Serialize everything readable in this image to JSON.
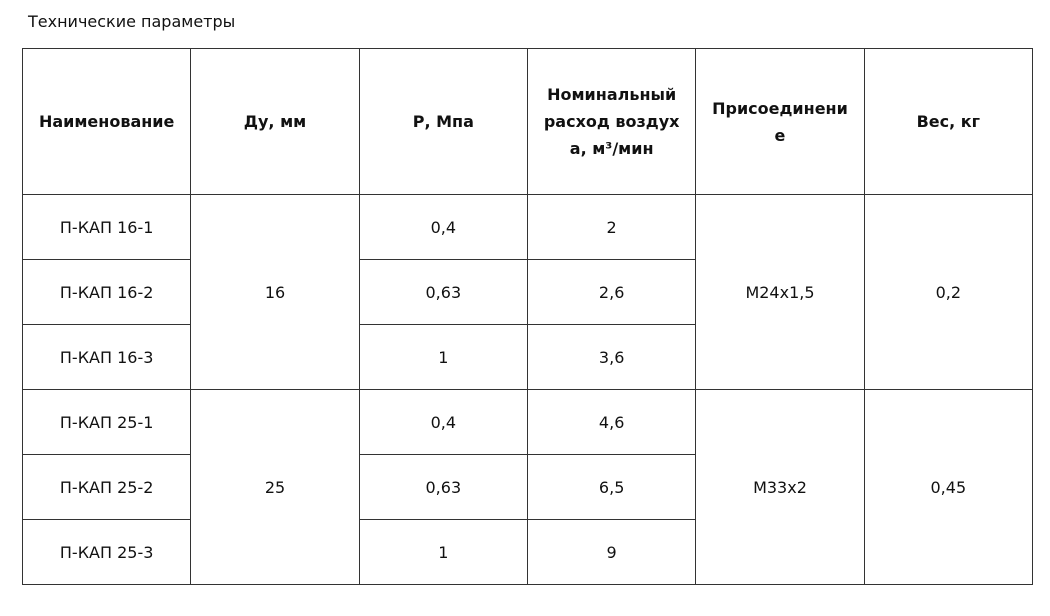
{
  "title": "Технические параметры",
  "table": {
    "headers": [
      "Наименование",
      "Ду, мм",
      "Р, Мпа",
      "Номинальный расход воздуха, м³/мин",
      "Присоединение",
      "Вес, кг"
    ],
    "groups": [
      {
        "dn": "16",
        "connection": "M24x1,5",
        "weight": "0,2",
        "items": [
          {
            "name": "П-КАП 16-1",
            "pressure": "0,4",
            "flow": "2"
          },
          {
            "name": "П-КАП 16-2",
            "pressure": "0,63",
            "flow": "2,6"
          },
          {
            "name": "П-КАП 16-3",
            "pressure": "1",
            "flow": "3,6"
          }
        ]
      },
      {
        "dn": "25",
        "connection": "M33x2",
        "weight": "0,45",
        "items": [
          {
            "name": "П-КАП 25-1",
            "pressure": "0,4",
            "flow": "4,6"
          },
          {
            "name": "П-КАП 25-2",
            "pressure": "0,63",
            "flow": "6,5"
          },
          {
            "name": "П-КАП 25-3",
            "pressure": "1",
            "flow": "9"
          }
        ]
      }
    ]
  }
}
